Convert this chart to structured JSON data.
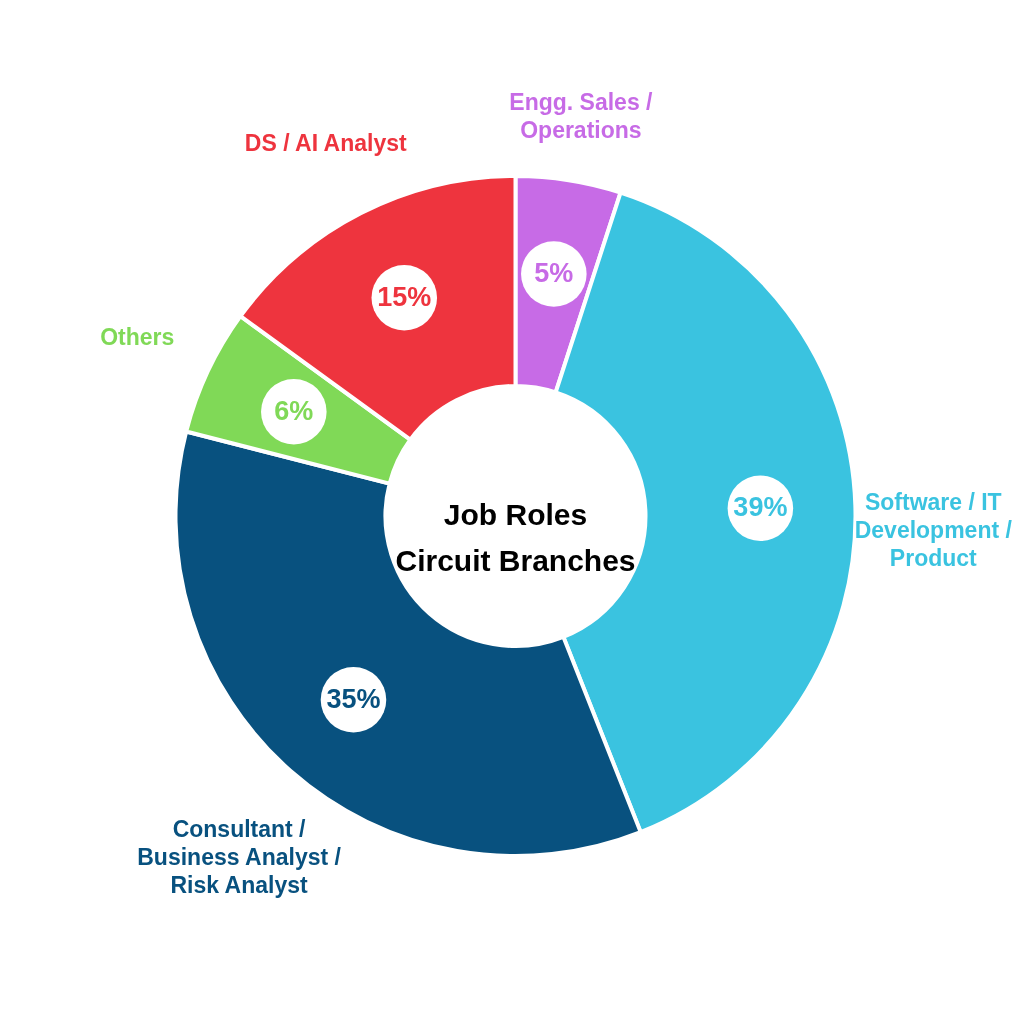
{
  "chart_data": {
    "type": "donut",
    "title": "Job Roles\nCircuit Branches",
    "categories": [
      "Engg. Sales / Operations",
      "Software / IT Development / Product",
      "Consultant / Business Analyst / Risk Analyst",
      "Others",
      "DS / AI Analyst"
    ],
    "values": [
      5,
      39,
      35,
      6,
      15
    ],
    "value_labels": [
      "5%",
      "39%",
      "35%",
      "6%",
      "15%"
    ],
    "colors": [
      "#c76be6",
      "#3ac3e0",
      "#08517f",
      "#80d957",
      "#ee343e"
    ]
  }
}
